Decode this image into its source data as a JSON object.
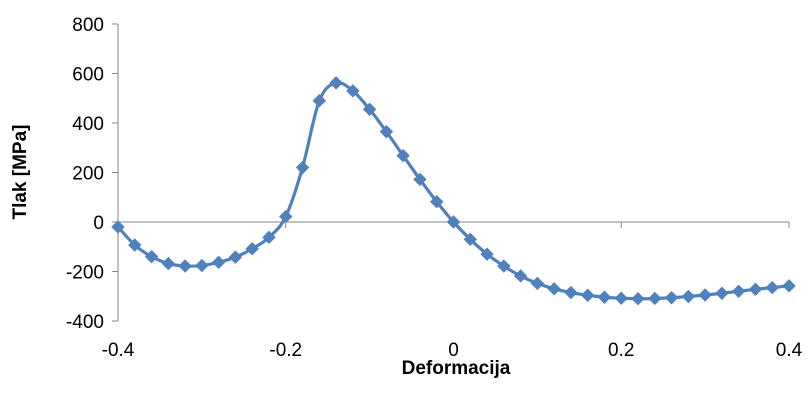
{
  "chart_data": {
    "type": "line",
    "title": "",
    "xlabel": "Deformacija",
    "ylabel": "Tlak [MPa]",
    "xlim": [
      -0.4,
      0.4
    ],
    "ylim": [
      -400,
      800
    ],
    "xticks": [
      "-0.4",
      "-0.2",
      "0",
      "0.2",
      "0.4"
    ],
    "yticks": [
      "800",
      "600",
      "400",
      "200",
      "0",
      "-200",
      "-400"
    ],
    "xtick_values": [
      -0.4,
      -0.2,
      0,
      0.2,
      0.4
    ],
    "ytick_values": [
      800,
      600,
      400,
      200,
      0,
      -200,
      -400
    ],
    "grid": false,
    "legend": "none",
    "marker": "diamond",
    "color": "#4F81BD",
    "series": [
      {
        "x": [
          -0.4,
          -0.38,
          -0.36,
          -0.34,
          -0.32,
          -0.3,
          -0.28,
          -0.26,
          -0.24,
          -0.22,
          -0.2,
          -0.18,
          -0.16,
          -0.14,
          -0.12,
          -0.1,
          -0.08,
          -0.06,
          -0.04,
          -0.02,
          0,
          0.02,
          0.04,
          0.06,
          0.08,
          0.1,
          0.12,
          0.14,
          0.16,
          0.18,
          0.2,
          0.22,
          0.24,
          0.26,
          0.28,
          0.3,
          0.32,
          0.34,
          0.36,
          0.38,
          0.4
        ],
        "y": [
          -20,
          -93,
          -140,
          -168,
          -178,
          -176,
          -163,
          -142,
          -108,
          -62,
          22,
          220,
          490,
          562,
          530,
          455,
          365,
          268,
          172,
          82,
          0,
          -70,
          -130,
          -178,
          -218,
          -248,
          -270,
          -285,
          -296,
          -304,
          -308,
          -310,
          -309,
          -306,
          -301,
          -295,
          -288,
          -280,
          -272,
          -265,
          -258
        ]
      }
    ]
  }
}
